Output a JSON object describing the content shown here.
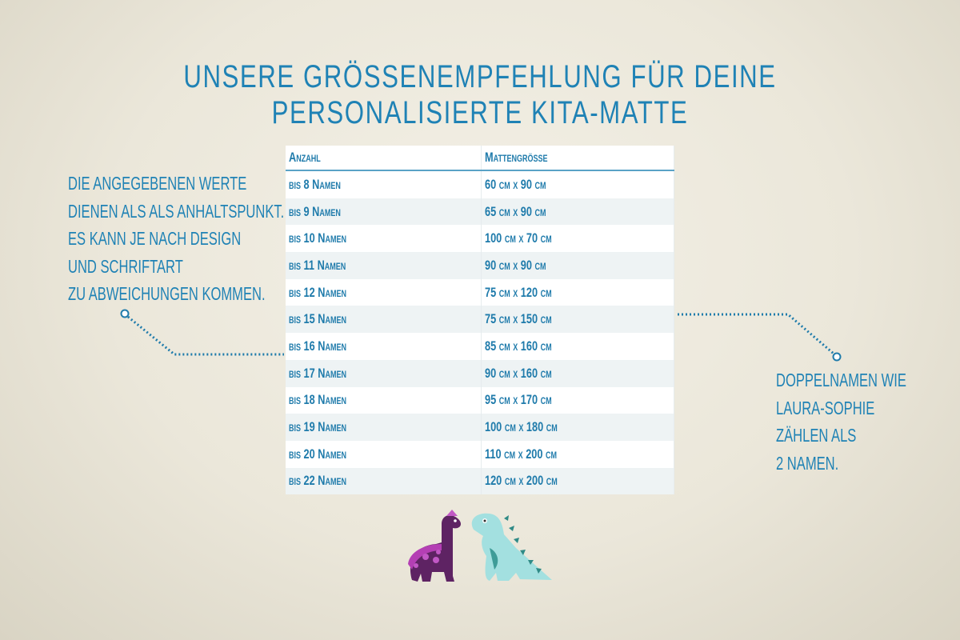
{
  "title": "Unsere Größenempfehlung für deine personalisierte Kita-Matte",
  "left_note": [
    "Die angegebenen Werte",
    "dienen als als Anhaltspunkt.",
    "Es kann je nach Design",
    "und Schriftart",
    "zu Abweichungen kommen."
  ],
  "right_note": [
    "Doppelnamen wie",
    "Laura-Sophie",
    "zählen als",
    "2 Namen."
  ],
  "table": {
    "headers": [
      "Anzahl",
      "Mattengröße"
    ],
    "rows": [
      [
        "bis 8 Namen",
        "60 cm x 90 cm"
      ],
      [
        "bis 9 Namen",
        "65 cm x 90 cm"
      ],
      [
        "bis 10 Namen",
        "100 cm x 70 cm"
      ],
      [
        "bis 11 Namen",
        "90 cm x 90 cm"
      ],
      [
        "bis 12 Namen",
        "75 cm x 120 cm"
      ],
      [
        "bis 15 Namen",
        "75 cm x 150 cm"
      ],
      [
        "bis 16 Namen",
        "85 cm x 160 cm"
      ],
      [
        "bis 17 Namen",
        "90 cm x 160 cm"
      ],
      [
        "bis 18 Namen",
        "95 cm x 170 cm"
      ],
      [
        "bis 19 Namen",
        "100 cm x 180 cm"
      ],
      [
        "bis 20 Namen",
        "110 cm x 200 cm"
      ],
      [
        "bis 22 Namen",
        "120 cm x 200 cm"
      ]
    ]
  },
  "colors": {
    "accent": "#1f7bab",
    "purple_dino": "#5e2363",
    "teal_dino": "#9fdede"
  },
  "illustration": [
    "purple-dinosaur",
    "teal-dinosaur"
  ]
}
